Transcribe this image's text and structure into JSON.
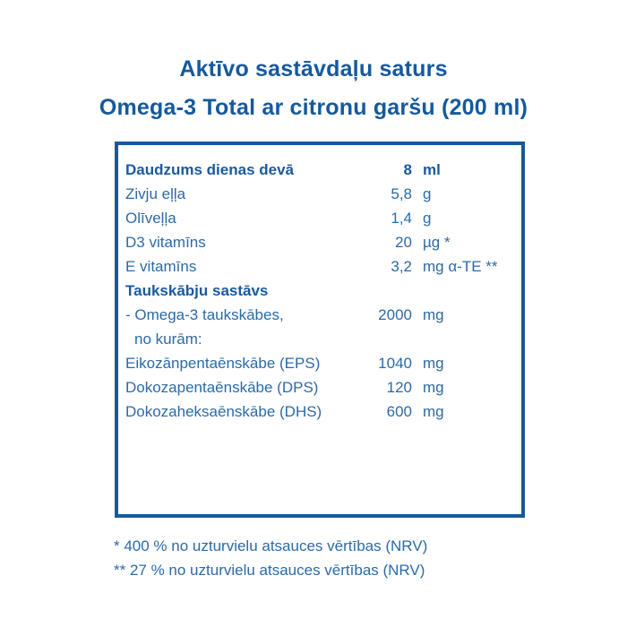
{
  "colors": {
    "primary_blue": "#15599c",
    "text_blue": "#2b6aa6",
    "background": "#ffffff"
  },
  "header": {
    "title_line1": "Aktīvo sastāvdaļu saturs",
    "title_line2": "Omega-3 Total ar citronu garšu (200 ml)"
  },
  "table": {
    "rows": [
      {
        "label": "Daudzums dienas devā",
        "value": "8",
        "unit": "ml",
        "bold": true
      },
      {
        "label": "Zivju eļļa",
        "value": "5,8",
        "unit": "g",
        "bold": false
      },
      {
        "label": "Olīveļļa",
        "value": "1,4",
        "unit": "g",
        "bold": false
      },
      {
        "label": "D3 vitamīns",
        "value": "20",
        "unit": "µg *",
        "bold": false
      },
      {
        "label": "E vitamīns",
        "value": "3,2",
        "unit": "mg α-TE **",
        "bold": false
      },
      {
        "label": "Taukskābju sastāvs",
        "value": "",
        "unit": "",
        "bold": true
      },
      {
        "label": "- Omega-3 taukskābes,",
        "value": "2000",
        "unit": "mg",
        "bold": false
      },
      {
        "label": "no kurām:",
        "value": "",
        "unit": "",
        "bold": false,
        "indent": true
      },
      {
        "label": "Eikozānpentaēnskābe (EPS)",
        "value": "1040",
        "unit": "mg",
        "bold": false
      },
      {
        "label": "Dokozapentaēnskābe (DPS)",
        "value": "120",
        "unit": "mg",
        "bold": false
      },
      {
        "label": "Dokozaheksaēnskābe (DHS)",
        "value": "600",
        "unit": "mg",
        "bold": false
      }
    ]
  },
  "footnotes": [
    "* 400 % no uzturvielu atsauces vērtības (NRV)",
    "** 27 % no uzturvielu atsauces vērtības (NRV)"
  ]
}
